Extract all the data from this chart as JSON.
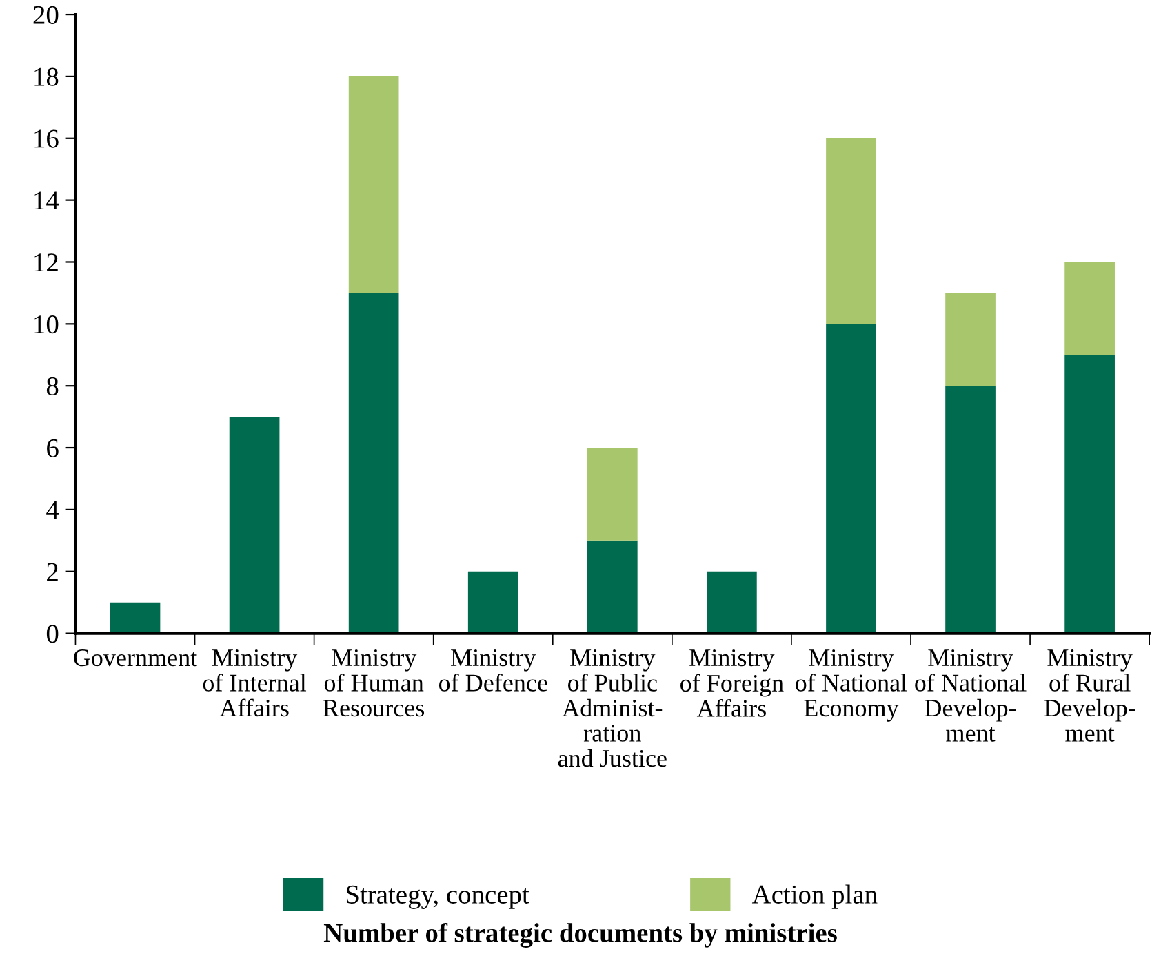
{
  "chart_data": {
    "type": "bar",
    "title": "Number of strategic documents by ministries",
    "categories": [
      "Government",
      "Ministry\nof Internal\nAffairs",
      "Ministry\nof Human\nResources",
      "Ministry\nof Defence",
      "Ministry\nof Public\nAdminist-\nration\nand Justice",
      "Ministry\nof Foreign\nAffairs",
      "Ministry\nof National\nEconomy",
      "Ministry\nof National\nDevelop-\nment",
      "Ministry\nof Rural\nDevelop-\nment"
    ],
    "series": [
      {
        "name": "Strategy, concept",
        "color": "#006b4f",
        "values": [
          1,
          7,
          11,
          2,
          3,
          2,
          10,
          8,
          9
        ]
      },
      {
        "name": "Action plan",
        "color": "#a8c66c",
        "values": [
          0,
          0,
          7,
          0,
          3,
          0,
          6,
          3,
          3
        ]
      }
    ],
    "stacked": true,
    "ylim": [
      0,
      20
    ],
    "yticks": [
      0,
      2,
      4,
      6,
      8,
      10,
      12,
      14,
      16,
      18,
      20
    ],
    "grid": false,
    "legend": "bottom"
  }
}
